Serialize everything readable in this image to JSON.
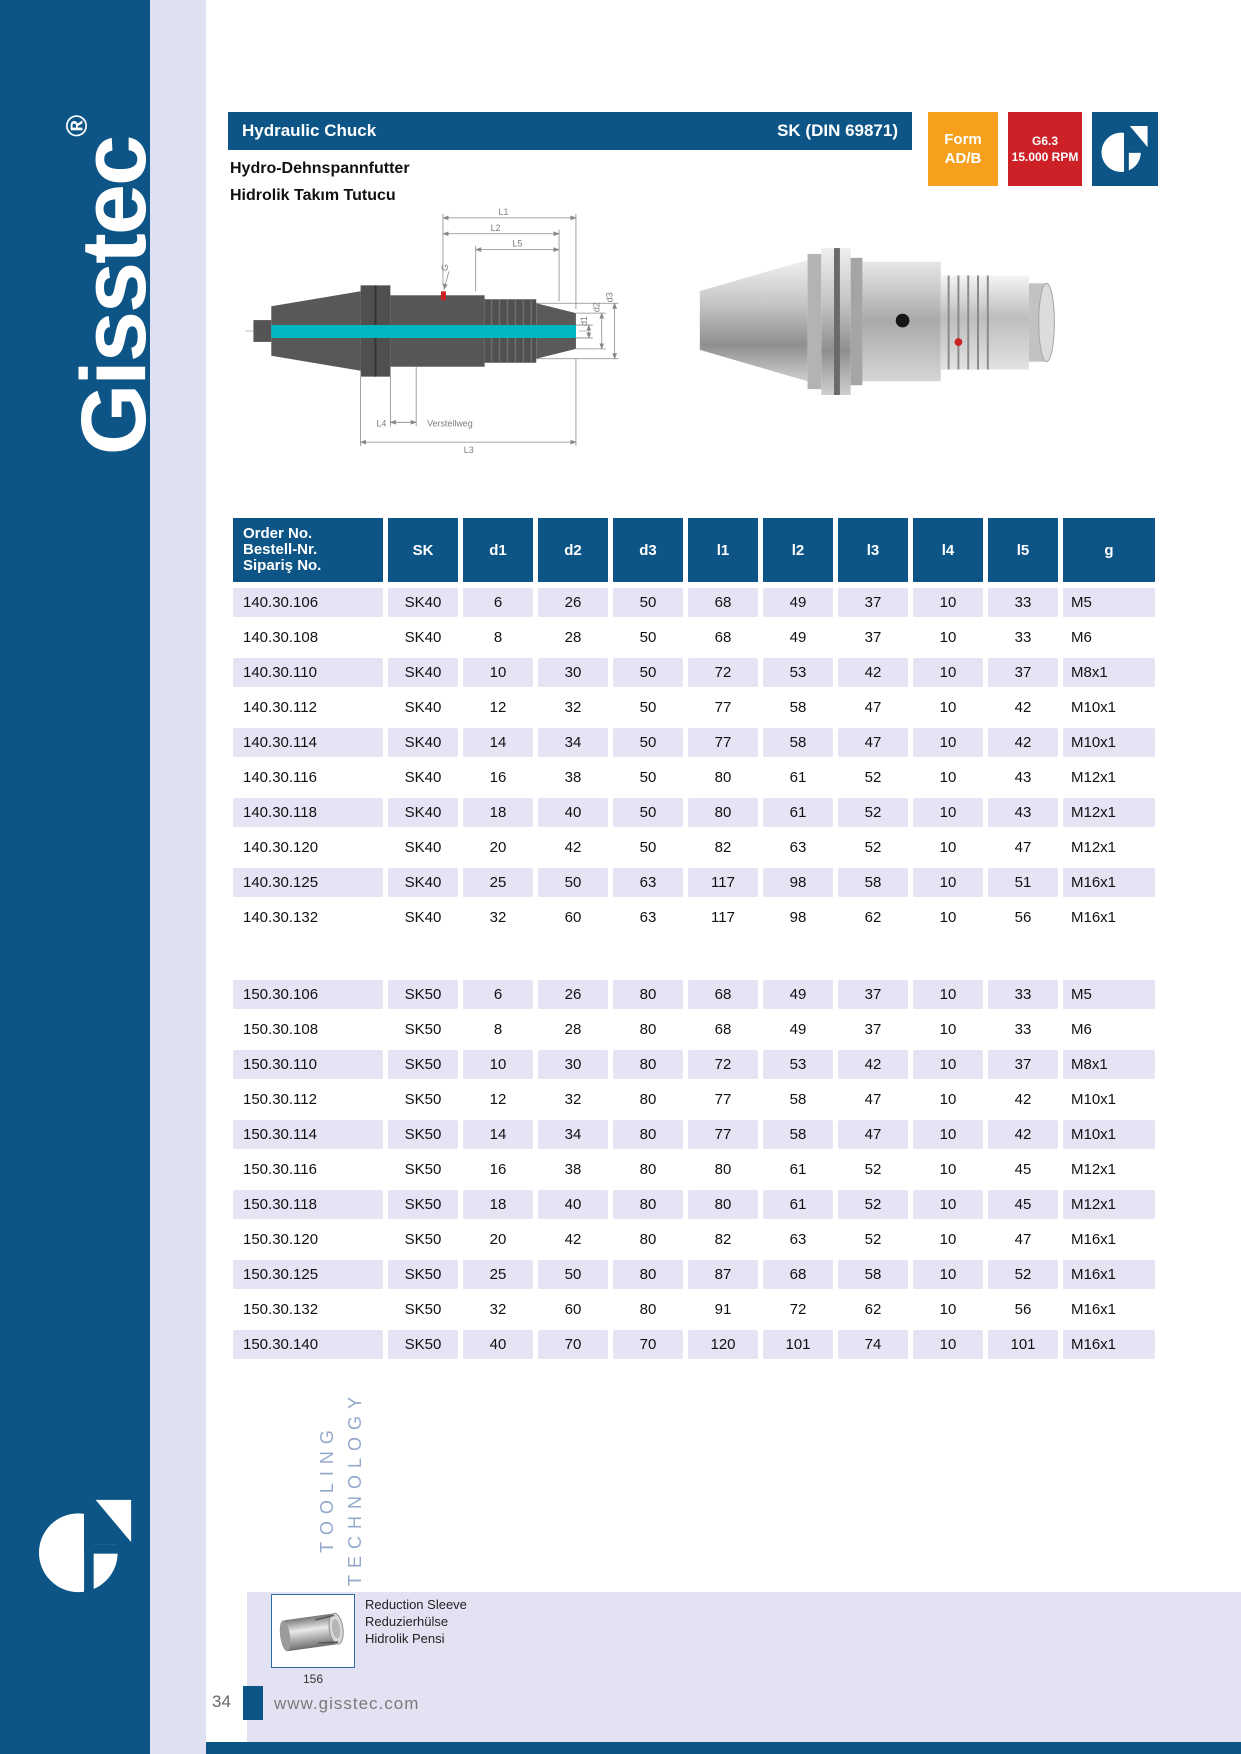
{
  "colors": {
    "accent_blue": "#0D5586",
    "orange": "#F6A01D",
    "red": "#CE2127",
    "row_shade": "#E4E4F5",
    "panel": "#E2E2F2",
    "teal": "#00B7C2"
  },
  "sidebar": {
    "brand": "Gisstec",
    "registered": "®",
    "vertical_text": "TOOLING TECHNOLOGY"
  },
  "header": {
    "title": "Hydraulic Chuck",
    "standard": "SK (DIN 69871)",
    "subtitle_de": "Hydro-Dehnspannfutter",
    "subtitle_tr": "Hidrolik Takım Tutucu",
    "form_badge": {
      "line1": "Form",
      "line2": "AD/B"
    },
    "speed_badge": {
      "line1": "G6.3",
      "line2": "15.000 RPM"
    }
  },
  "drawing": {
    "labels": {
      "l1": "L1",
      "l2": "L2",
      "l5": "L5",
      "g": "G",
      "d1": "d1",
      "d2": "d2",
      "d3": "d3",
      "l4": "L4",
      "verstellweg": "Verstellweg",
      "l3": "L3"
    }
  },
  "table": {
    "order_header": [
      "Order No.",
      "Bestell-Nr.",
      "Sipariş No."
    ],
    "columns": [
      "SK",
      "d1",
      "d2",
      "d3",
      "l1",
      "l2",
      "l3",
      "l4",
      "l5",
      "g"
    ],
    "groups": [
      {
        "name": "SK40",
        "rows": [
          [
            "140.30.106",
            "SK40",
            "6",
            "26",
            "50",
            "68",
            "49",
            "37",
            "10",
            "33",
            "M5"
          ],
          [
            "140.30.108",
            "SK40",
            "8",
            "28",
            "50",
            "68",
            "49",
            "37",
            "10",
            "33",
            "M6"
          ],
          [
            "140.30.110",
            "SK40",
            "10",
            "30",
            "50",
            "72",
            "53",
            "42",
            "10",
            "37",
            "M8x1"
          ],
          [
            "140.30.112",
            "SK40",
            "12",
            "32",
            "50",
            "77",
            "58",
            "47",
            "10",
            "42",
            "M10x1"
          ],
          [
            "140.30.114",
            "SK40",
            "14",
            "34",
            "50",
            "77",
            "58",
            "47",
            "10",
            "42",
            "M10x1"
          ],
          [
            "140.30.116",
            "SK40",
            "16",
            "38",
            "50",
            "80",
            "61",
            "52",
            "10",
            "43",
            "M12x1"
          ],
          [
            "140.30.118",
            "SK40",
            "18",
            "40",
            "50",
            "80",
            "61",
            "52",
            "10",
            "43",
            "M12x1"
          ],
          [
            "140.30.120",
            "SK40",
            "20",
            "42",
            "50",
            "82",
            "63",
            "52",
            "10",
            "47",
            "M12x1"
          ],
          [
            "140.30.125",
            "SK40",
            "25",
            "50",
            "63",
            "117",
            "98",
            "58",
            "10",
            "51",
            "M16x1"
          ],
          [
            "140.30.132",
            "SK40",
            "32",
            "60",
            "63",
            "117",
            "98",
            "62",
            "10",
            "56",
            "M16x1"
          ]
        ]
      },
      {
        "name": "SK50",
        "rows": [
          [
            "150.30.106",
            "SK50",
            "6",
            "26",
            "80",
            "68",
            "49",
            "37",
            "10",
            "33",
            "M5"
          ],
          [
            "150.30.108",
            "SK50",
            "8",
            "28",
            "80",
            "68",
            "49",
            "37",
            "10",
            "33",
            "M6"
          ],
          [
            "150.30.110",
            "SK50",
            "10",
            "30",
            "80",
            "72",
            "53",
            "42",
            "10",
            "37",
            "M8x1"
          ],
          [
            "150.30.112",
            "SK50",
            "12",
            "32",
            "80",
            "77",
            "58",
            "47",
            "10",
            "42",
            "M10x1"
          ],
          [
            "150.30.114",
            "SK50",
            "14",
            "34",
            "80",
            "77",
            "58",
            "47",
            "10",
            "42",
            "M10x1"
          ],
          [
            "150.30.116",
            "SK50",
            "16",
            "38",
            "80",
            "80",
            "61",
            "52",
            "10",
            "45",
            "M12x1"
          ],
          [
            "150.30.118",
            "SK50",
            "18",
            "40",
            "80",
            "80",
            "61",
            "52",
            "10",
            "45",
            "M12x1"
          ],
          [
            "150.30.120",
            "SK50",
            "20",
            "42",
            "80",
            "82",
            "63",
            "52",
            "10",
            "47",
            "M16x1"
          ],
          [
            "150.30.125",
            "SK50",
            "25",
            "50",
            "80",
            "87",
            "68",
            "58",
            "10",
            "52",
            "M16x1"
          ],
          [
            "150.30.132",
            "SK50",
            "32",
            "60",
            "80",
            "91",
            "72",
            "62",
            "10",
            "56",
            "M16x1"
          ],
          [
            "150.30.140",
            "SK50",
            "40",
            "70",
            "70",
            "120",
            "101",
            "74",
            "10",
            "101",
            "M16x1"
          ]
        ]
      }
    ]
  },
  "footnote": {
    "caption": [
      "Reduction Sleeve",
      "Reduzierhülse",
      "Hidrolik Pensi"
    ],
    "page_ref": "156"
  },
  "footer": {
    "page": "34",
    "url": "www.gisstec.com"
  }
}
